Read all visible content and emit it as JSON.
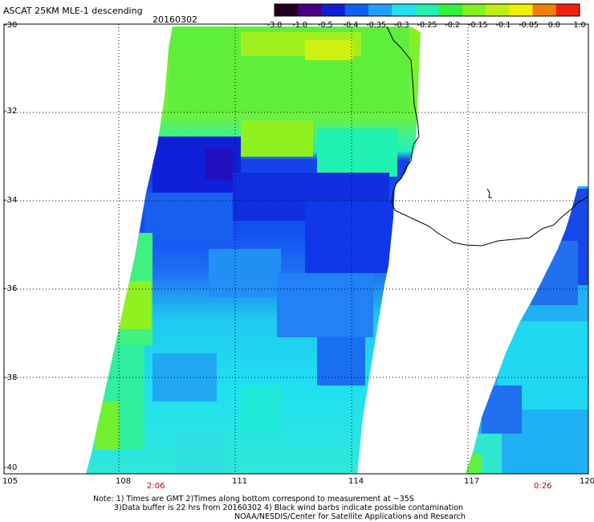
{
  "header": {
    "title": "ASCAT 25KM MLE-1 descending",
    "date": "20160302"
  },
  "colorbar": {
    "labels": [
      "-3.0",
      "-1.0",
      "-0.5",
      "-0.4",
      "-0.35",
      "-0.3",
      "-0.25",
      "-0.2",
      "-0.15",
      "-0.1",
      "-0.05",
      "0.0",
      "1.0"
    ],
    "colors": [
      "#200020",
      "#4a0080",
      "#1020d0",
      "#1060f0",
      "#20a0f8",
      "#20e0f0",
      "#20f0b0",
      "#30f040",
      "#80f020",
      "#c0f010",
      "#f0f000",
      "#f08000",
      "#f02010"
    ]
  },
  "map": {
    "lat_labels": [
      "-30",
      "-32",
      "-34",
      "-36",
      "-38",
      "-40"
    ],
    "lon_labels": [
      "105",
      "108",
      "111",
      "114",
      "117",
      "120"
    ],
    "time_labels": [
      "2:06",
      "0:26"
    ],
    "time_color": "#c00000",
    "grid": "dotted"
  },
  "footer": {
    "note1": "Note: 1) Times are GMT 2)Times along bottom correspond to measurement at ~35S",
    "note2": "3)Data buffer is 22 hrs from 20160302 4) Black wind barbs indicate possible contamination",
    "credit": "NOAA/NESDIS/Center for Satellite Applications and Research"
  }
}
